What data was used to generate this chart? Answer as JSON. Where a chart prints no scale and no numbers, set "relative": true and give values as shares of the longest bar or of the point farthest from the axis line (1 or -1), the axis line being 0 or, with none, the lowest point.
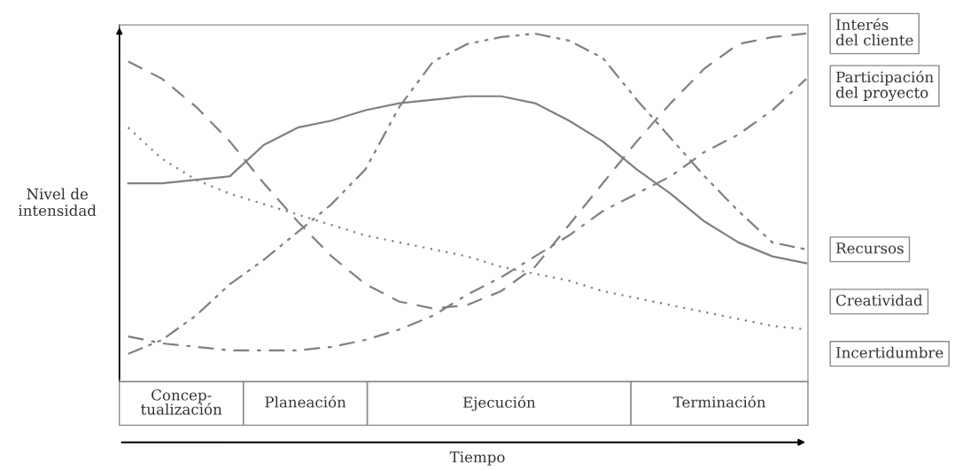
{
  "chart_data": {
    "type": "line",
    "relative": true,
    "xlabel": "Tiempo",
    "ylabel": "Nivel de\nintensidad",
    "categories": [
      null,
      null,
      null,
      null,
      null,
      null,
      null,
      null,
      null,
      null,
      null,
      null,
      null,
      null,
      null,
      null,
      null,
      null,
      null,
      null,
      null
    ],
    "series": [
      {
        "name": "Interés\ndel cliente",
        "color": "#808080",
        "line_style": "dashed",
        "values": [
          0.92,
          0.87,
          0.79,
          0.69,
          0.57,
          0.46,
          0.36,
          0.28,
          0.23,
          0.21,
          0.22,
          0.26,
          0.33,
          0.45,
          0.57,
          0.69,
          0.8,
          0.9,
          0.97,
          0.99,
          1.0
        ]
      },
      {
        "name": "Participación\ndel proyecto",
        "color": "#808080",
        "line_style": "dashdot",
        "values": [
          0.13,
          0.11,
          0.1,
          0.09,
          0.09,
          0.09,
          0.1,
          0.12,
          0.15,
          0.19,
          0.25,
          0.3,
          0.36,
          0.42,
          0.49,
          0.54,
          0.59,
          0.66,
          0.71,
          0.78,
          0.87
        ]
      },
      {
        "name": "Recursos",
        "color": "#808080",
        "line_style": "dashdotdot",
        "values": [
          0.08,
          0.12,
          0.19,
          0.28,
          0.35,
          0.43,
          0.51,
          0.61,
          0.79,
          0.92,
          0.97,
          0.99,
          1.0,
          0.98,
          0.93,
          0.81,
          0.7,
          0.59,
          0.49,
          0.4,
          0.38
        ]
      },
      {
        "name": "Creatividad",
        "color": "#808080",
        "line_style": "solid",
        "values": [
          0.57,
          0.57,
          0.58,
          0.59,
          0.68,
          0.73,
          0.75,
          0.78,
          0.8,
          0.81,
          0.82,
          0.82,
          0.8,
          0.75,
          0.69,
          0.61,
          0.54,
          0.46,
          0.4,
          0.36,
          0.34
        ]
      },
      {
        "name": "Incertidumbre",
        "color": "#808080",
        "line_style": "dotted",
        "values": [
          0.73,
          0.64,
          0.58,
          0.54,
          0.51,
          0.48,
          0.45,
          0.42,
          0.4,
          0.38,
          0.36,
          0.33,
          0.31,
          0.29,
          0.26,
          0.24,
          0.22,
          0.2,
          0.18,
          0.16,
          0.15
        ]
      }
    ],
    "annotations": [
      "Concep-\ntualización",
      "Planeación",
      "Ejecución",
      "Terminación"
    ],
    "grid": false,
    "legend": false
  }
}
